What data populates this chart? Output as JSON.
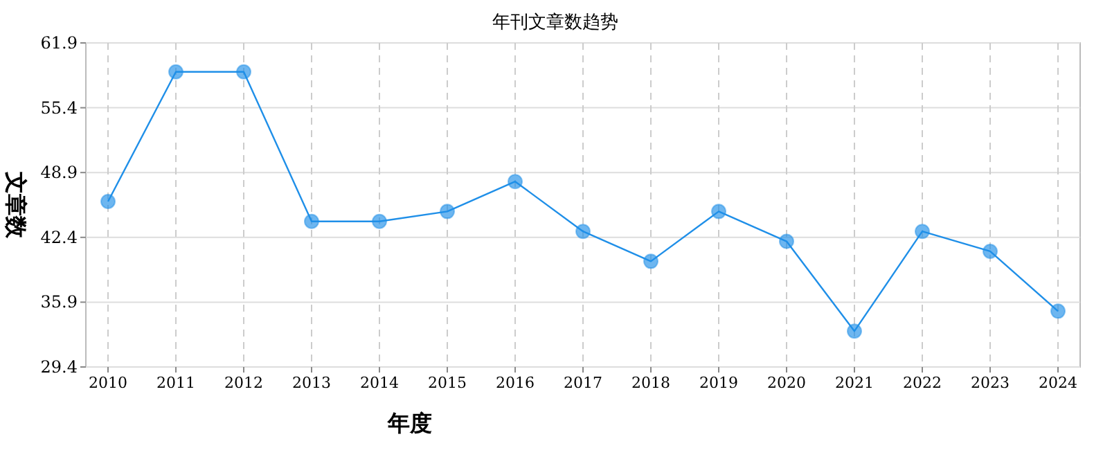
{
  "chart_data": {
    "type": "line",
    "title": "年刊文章数趋势",
    "xlabel": "年度",
    "ylabel": "文章数",
    "categories": [
      "2010",
      "2011",
      "2012",
      "2013",
      "2014",
      "2015",
      "2016",
      "2017",
      "2018",
      "2019",
      "2020",
      "2021",
      "2022",
      "2023",
      "2024"
    ],
    "series": [
      {
        "color": "#1f8fe8",
        "values": [
          46,
          59,
          59,
          44,
          44,
          45,
          48,
          43,
          40,
          45,
          42,
          33,
          43,
          41,
          35
        ]
      }
    ],
    "ylim": [
      29.4,
      61.9
    ],
    "yticks": [
      29.4,
      35.9,
      42.4,
      48.9,
      55.4,
      61.9
    ],
    "grid": true,
    "marker": "circle",
    "line_style": "solid"
  }
}
